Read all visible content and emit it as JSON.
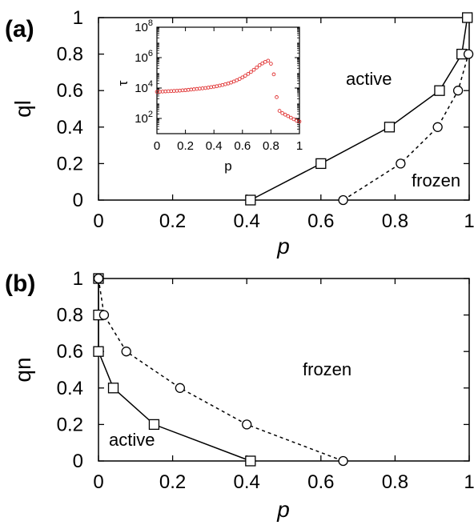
{
  "chart_data": [
    {
      "panel_label": "(a)",
      "type": "line",
      "xlabel": "p",
      "ylabel": "ql",
      "xlim": [
        0,
        1
      ],
      "ylim": [
        0,
        1
      ],
      "xticks": [
        "0",
        "0.2",
        "0.4",
        "0.6",
        "0.8",
        "1"
      ],
      "yticks": [
        "0",
        "0.2",
        "0.4",
        "0.6",
        "0.8",
        "1"
      ],
      "series": [
        {
          "marker": "square",
          "line": "solid",
          "x": [
            0.41,
            0.6,
            0.785,
            0.92,
            0.98,
            0.995
          ],
          "y": [
            0,
            0.2,
            0.4,
            0.6,
            0.8,
            1.0
          ]
        },
        {
          "marker": "circle",
          "line": "dashed",
          "x": [
            0.66,
            0.815,
            0.915,
            0.97,
            0.998
          ],
          "y": [
            0,
            0.2,
            0.4,
            0.6,
            0.8
          ]
        }
      ],
      "annotations": [
        "active",
        "frozen"
      ],
      "inset": {
        "type": "scatter",
        "xlabel": "p",
        "ylabel": "τ",
        "yscale": "log",
        "xlim": [
          0,
          1
        ],
        "ylim_exp": [
          1,
          8
        ],
        "xticks": [
          "0",
          "0.2",
          "0.4",
          "0.6",
          "0.8",
          "1"
        ],
        "yticks": [
          {
            "base": "10",
            "exp": "2"
          },
          {
            "base": "10",
            "exp": "4"
          },
          {
            "base": "10",
            "exp": "6"
          },
          {
            "base": "10",
            "exp": "8"
          }
        ],
        "marker_color": "#e03030",
        "x": [
          0.0,
          0.02,
          0.04,
          0.06,
          0.08,
          0.1,
          0.12,
          0.14,
          0.16,
          0.18,
          0.2,
          0.22,
          0.24,
          0.26,
          0.28,
          0.3,
          0.32,
          0.34,
          0.36,
          0.38,
          0.4,
          0.42,
          0.44,
          0.46,
          0.48,
          0.5,
          0.52,
          0.54,
          0.56,
          0.58,
          0.6,
          0.62,
          0.64,
          0.66,
          0.68,
          0.7,
          0.72,
          0.74,
          0.76,
          0.78,
          0.8,
          0.82,
          0.84,
          0.86,
          0.88,
          0.9,
          0.92,
          0.94,
          0.96,
          0.98,
          1.0
        ],
        "log10_y": [
          3.75,
          3.76,
          3.77,
          3.78,
          3.79,
          3.8,
          3.81,
          3.82,
          3.83,
          3.85,
          3.86,
          3.88,
          3.9,
          3.92,
          3.94,
          3.96,
          3.98,
          4.0,
          4.03,
          4.06,
          4.09,
          4.12,
          4.16,
          4.2,
          4.25,
          4.3,
          4.36,
          4.43,
          4.51,
          4.6,
          4.7,
          4.81,
          4.93,
          5.06,
          5.2,
          5.35,
          5.5,
          5.62,
          5.72,
          5.8,
          5.6,
          4.9,
          3.4,
          2.5,
          2.35,
          2.25,
          2.15,
          2.05,
          1.95,
          1.85,
          1.8
        ]
      }
    },
    {
      "panel_label": "(b)",
      "type": "line",
      "xlabel": "p",
      "ylabel": "qn",
      "xlim": [
        0,
        1
      ],
      "ylim": [
        0,
        1
      ],
      "xticks": [
        "0",
        "0.2",
        "0.4",
        "0.6",
        "0.8",
        "1"
      ],
      "yticks": [
        "0",
        "0.2",
        "0.4",
        "0.6",
        "0.8",
        "1"
      ],
      "series": [
        {
          "marker": "square",
          "line": "solid",
          "x": [
            0.0,
            0.0,
            0.0,
            0.04,
            0.15,
            0.41
          ],
          "y": [
            1.0,
            0.8,
            0.6,
            0.4,
            0.2,
            0
          ]
        },
        {
          "marker": "circle",
          "line": "dashed",
          "x": [
            0.0,
            0.015,
            0.075,
            0.22,
            0.4,
            0.66
          ],
          "y": [
            1.0,
            0.8,
            0.6,
            0.4,
            0.2,
            0
          ]
        }
      ],
      "annotations": [
        "frozen",
        "active"
      ]
    }
  ]
}
